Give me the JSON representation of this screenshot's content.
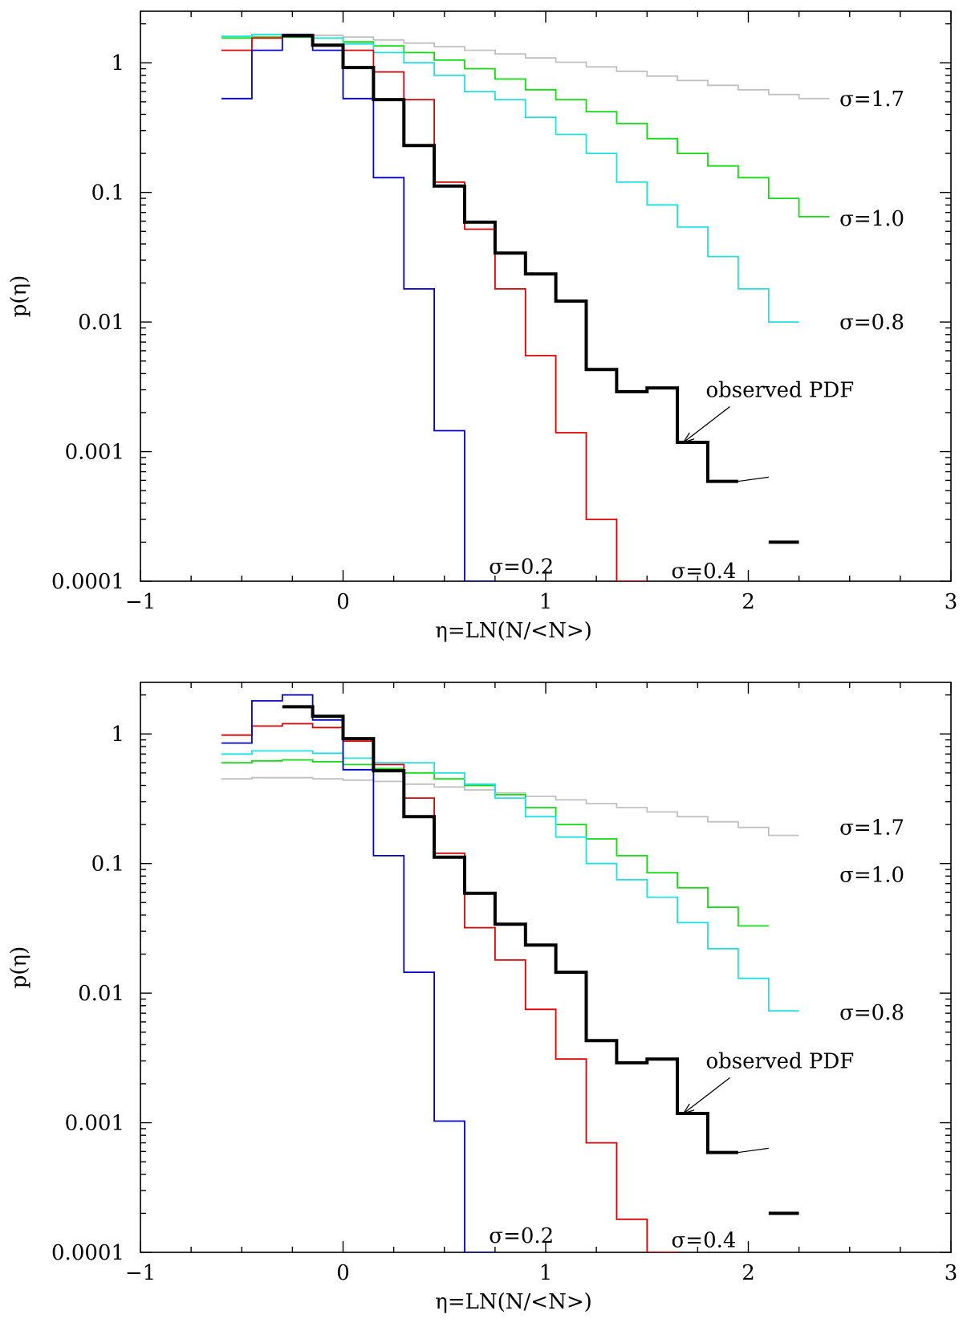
{
  "colors": {
    "sigma_0.2": "#0000cc",
    "sigma_0.4": "#dd0000",
    "sigma_0.8": "#22e0e0",
    "sigma_1.0": "#11dd11",
    "sigma_1.7": "#c0c0c0",
    "observed": "#000000"
  },
  "chart_data": [
    {
      "type": "line",
      "step": true,
      "panel": "top",
      "xlabel": "η=LN(N/<N>)",
      "ylabel": "p(η)",
      "xlim": [
        -1,
        3
      ],
      "ylim": [
        0.0001,
        2.5
      ],
      "yscale": "log",
      "xticks": [
        -1,
        0,
        1,
        2,
        3
      ],
      "xticklabels": [
        "−1",
        "0",
        "1",
        "2",
        "3"
      ],
      "yticks": [
        1,
        0.1,
        0.01,
        0.001,
        0.0001
      ],
      "yticklabels": [
        "1",
        "0.1",
        "0.01",
        "0.001",
        "0.0001"
      ],
      "bin_edges": [
        -0.6,
        -0.45,
        -0.3,
        -0.15,
        0,
        0.15,
        0.3,
        0.45,
        0.6,
        0.75,
        0.9,
        1.05,
        1.2,
        1.35,
        1.5,
        1.65,
        1.8,
        1.95,
        2.1,
        2.25,
        2.4
      ],
      "series": [
        {
          "name": "σ=1.7",
          "color_key": "sigma_1.7",
          "width": 1.8,
          "values": [
            1.6,
            1.65,
            1.66,
            1.63,
            1.58,
            1.5,
            1.42,
            1.33,
            1.25,
            1.17,
            1.09,
            1.01,
            0.93,
            0.86,
            0.79,
            0.73,
            0.67,
            0.62,
            0.57,
            0.53
          ]
        },
        {
          "name": "σ=1.0",
          "color_key": "sigma_1.0",
          "width": 1.8,
          "values": [
            1.55,
            1.58,
            1.58,
            1.55,
            1.45,
            1.35,
            1.2,
            1.05,
            0.9,
            0.75,
            0.62,
            0.52,
            0.42,
            0.34,
            0.26,
            0.2,
            0.16,
            0.13,
            0.09,
            0.065
          ]
        },
        {
          "name": "σ=0.8",
          "color_key": "sigma_0.8",
          "width": 1.8,
          "values": [
            1.6,
            1.65,
            1.62,
            1.55,
            1.4,
            1.2,
            1.0,
            0.8,
            0.6,
            0.52,
            0.38,
            0.28,
            0.2,
            0.12,
            0.08,
            0.054,
            0.032,
            0.018,
            0.01
          ]
        },
        {
          "name": "σ=0.4",
          "color_key": "sigma_0.4",
          "width": 1.8,
          "values": [
            1.25,
            1.55,
            1.65,
            1.35,
            1.25,
            0.85,
            0.52,
            0.12,
            0.052,
            0.018,
            0.0055,
            0.0014,
            0.0003,
            3e-05
          ]
        },
        {
          "name": "σ=0.2",
          "color_key": "sigma_0.2",
          "width": 1.8,
          "values": [
            0.53,
            1.25,
            1.65,
            1.25,
            0.53,
            0.13,
            0.018,
            0.00145,
            3e-05
          ]
        },
        {
          "name": "observed PDF",
          "color_key": "observed",
          "width": 4,
          "values": [
            null,
            null,
            1.62,
            1.37,
            0.92,
            0.52,
            0.23,
            0.112,
            0.059,
            0.034,
            0.0235,
            0.0145,
            0.0043,
            0.0029,
            0.0031,
            0.00118,
            0.00059,
            null,
            0.0002,
            null
          ],
          "start_index": 2,
          "gap_after": [
            16
          ]
        }
      ],
      "annotations": [
        {
          "text": "σ=1.7",
          "x": 2.45,
          "y": 0.53
        },
        {
          "text": "σ=1.0",
          "x": 2.45,
          "y": 0.063
        },
        {
          "text": "σ=0.8",
          "x": 2.45,
          "y": 0.01
        },
        {
          "text": "σ=0.2",
          "x": 0.72,
          "y": 0.00013
        },
        {
          "text": "σ=0.4",
          "x": 1.62,
          "y": 0.00012
        },
        {
          "text": "observed PDF",
          "x": 1.79,
          "y": 0.003,
          "arrow_to": [
            1.68,
            0.00118
          ]
        }
      ]
    },
    {
      "type": "line",
      "step": true,
      "panel": "bottom",
      "xlabel": "η=LN(N/<N>)",
      "ylabel": "p(η)",
      "xlim": [
        -1,
        3
      ],
      "ylim": [
        0.0001,
        2.5
      ],
      "yscale": "log",
      "xticks": [
        -1,
        0,
        1,
        2,
        3
      ],
      "xticklabels": [
        "−1",
        "0",
        "1",
        "2",
        "3"
      ],
      "yticks": [
        1,
        0.1,
        0.01,
        0.001,
        0.0001
      ],
      "yticklabels": [
        "1",
        "0.1",
        "0.01",
        "0.001",
        "0.0001"
      ],
      "bin_edges": [
        -0.6,
        -0.45,
        -0.3,
        -0.15,
        0,
        0.15,
        0.3,
        0.45,
        0.6,
        0.75,
        0.9,
        1.05,
        1.2,
        1.35,
        1.5,
        1.65,
        1.8,
        1.95,
        2.1,
        2.25
      ],
      "series": [
        {
          "name": "σ=1.7",
          "color_key": "sigma_1.7",
          "width": 1.8,
          "values": [
            0.45,
            0.46,
            0.46,
            0.45,
            0.44,
            0.43,
            0.41,
            0.39,
            0.37,
            0.35,
            0.33,
            0.31,
            0.29,
            0.27,
            0.25,
            0.23,
            0.21,
            0.19,
            0.165
          ]
        },
        {
          "name": "σ=1.0",
          "color_key": "sigma_1.0",
          "width": 1.8,
          "values": [
            0.6,
            0.62,
            0.63,
            0.61,
            0.58,
            0.54,
            0.5,
            0.45,
            0.4,
            0.34,
            0.27,
            0.2,
            0.155,
            0.115,
            0.085,
            0.065,
            0.046,
            0.033
          ]
        },
        {
          "name": "σ=0.8",
          "color_key": "sigma_0.8",
          "width": 1.8,
          "values": [
            0.7,
            0.74,
            0.74,
            0.71,
            0.65,
            0.6,
            0.6,
            0.5,
            0.41,
            0.32,
            0.23,
            0.16,
            0.1,
            0.075,
            0.055,
            0.035,
            0.022,
            0.013,
            0.0073
          ]
        },
        {
          "name": "σ=0.4",
          "color_key": "sigma_0.4",
          "width": 1.8,
          "values": [
            0.98,
            1.15,
            1.2,
            1.12,
            0.88,
            0.58,
            0.32,
            0.12,
            0.032,
            0.018,
            0.0075,
            0.0031,
            0.0007,
            0.00018,
            3e-05
          ]
        },
        {
          "name": "σ=0.2",
          "color_key": "sigma_0.2",
          "width": 1.8,
          "values": [
            0.85,
            1.8,
            2.0,
            1.28,
            0.53,
            0.115,
            0.0145,
            0.00103,
            3e-05
          ]
        },
        {
          "name": "observed PDF",
          "color_key": "observed",
          "width": 4,
          "values": [
            null,
            null,
            1.62,
            1.37,
            0.92,
            0.52,
            0.23,
            0.112,
            0.059,
            0.034,
            0.0235,
            0.0145,
            0.0043,
            0.0029,
            0.0031,
            0.00118,
            0.00059,
            null,
            0.0002
          ],
          "start_index": 2,
          "gap_after": [
            16
          ]
        }
      ],
      "annotations": [
        {
          "text": "σ=1.7",
          "x": 2.45,
          "y": 0.19
        },
        {
          "text": "σ=1.0",
          "x": 2.45,
          "y": 0.082
        },
        {
          "text": "σ=0.8",
          "x": 2.45,
          "y": 0.0071
        },
        {
          "text": "σ=0.2",
          "x": 0.72,
          "y": 0.000135
        },
        {
          "text": "σ=0.4",
          "x": 1.62,
          "y": 0.000125
        },
        {
          "text": "observed PDF",
          "x": 1.79,
          "y": 0.003,
          "arrow_to": [
            1.68,
            0.00118
          ]
        }
      ]
    }
  ]
}
